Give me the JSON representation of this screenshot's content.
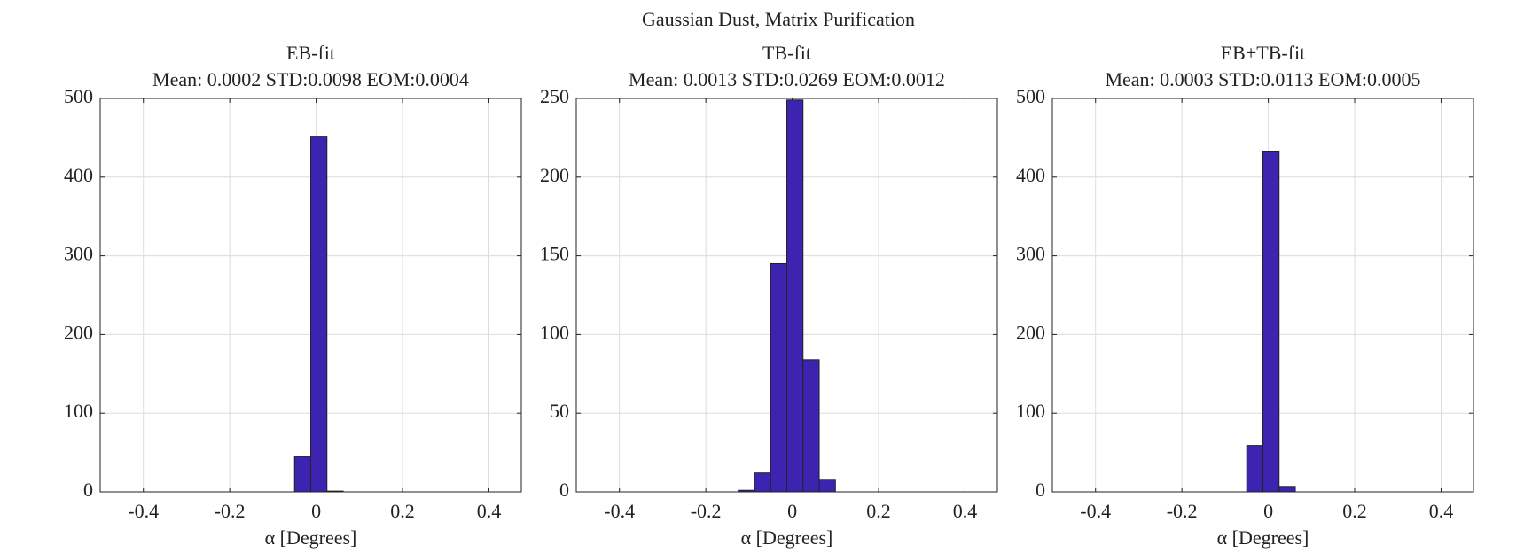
{
  "title": "Gaussian Dust, Matrix Purification",
  "chart_data": [
    {
      "type": "histogram",
      "title": "EB-fit",
      "subtitle": "Mean: 0.0002 STD:0.0098 EOM:0.0004",
      "bins": [
        -0.5,
        -0.4625,
        -0.425,
        -0.3875,
        -0.35,
        -0.3125,
        -0.275,
        -0.2375,
        -0.2,
        -0.1625,
        -0.125,
        -0.0875,
        -0.05,
        -0.0125,
        0.025,
        0.0625,
        0.1,
        0.1375,
        0.175,
        0.2125,
        0.25,
        0.2875,
        0.325,
        0.3625,
        0.4,
        0.4375,
        0.475
      ],
      "values": [
        0,
        0,
        0,
        0,
        0,
        0,
        0,
        0,
        0,
        0,
        0,
        0,
        45,
        452,
        1,
        0,
        0,
        0,
        0,
        0,
        0,
        0,
        0,
        0,
        0,
        0
      ],
      "color": "#3c24b0",
      "xlim": [
        -0.5,
        0.475
      ],
      "ylim": [
        0,
        500
      ],
      "xticks": [
        -0.4,
        -0.2,
        0,
        0.2,
        0.4
      ],
      "yticks": [
        0,
        100,
        200,
        300,
        400,
        500
      ],
      "xlabel": "α [Degrees]",
      "grid": true
    },
    {
      "type": "histogram",
      "title": "TB-fit",
      "subtitle": "Mean: 0.0013 STD:0.0269 EOM:0.0012",
      "bins": [
        -0.5,
        -0.4625,
        -0.425,
        -0.3875,
        -0.35,
        -0.3125,
        -0.275,
        -0.2375,
        -0.2,
        -0.1625,
        -0.125,
        -0.0875,
        -0.05,
        -0.0125,
        0.025,
        0.0625,
        0.1,
        0.1375,
        0.175,
        0.2125,
        0.25,
        0.2875,
        0.325,
        0.3625,
        0.4,
        0.4375,
        0.475
      ],
      "values": [
        0,
        0,
        0,
        0,
        0,
        0,
        0,
        0,
        0,
        0,
        1,
        12,
        145,
        249,
        84,
        8,
        0,
        0,
        0,
        0,
        0,
        0,
        0,
        0,
        0,
        0
      ],
      "color": "#3c24b0",
      "xlim": [
        -0.5,
        0.475
      ],
      "ylim": [
        0,
        250
      ],
      "xticks": [
        -0.4,
        -0.2,
        0,
        0.2,
        0.4
      ],
      "yticks": [
        0,
        50,
        100,
        150,
        200,
        250
      ],
      "xlabel": "α [Degrees]",
      "grid": true
    },
    {
      "type": "histogram",
      "title": "EB+TB-fit",
      "subtitle": "Mean: 0.0003 STD:0.0113 EOM:0.0005",
      "bins": [
        -0.5,
        -0.4625,
        -0.425,
        -0.3875,
        -0.35,
        -0.3125,
        -0.275,
        -0.2375,
        -0.2,
        -0.1625,
        -0.125,
        -0.0875,
        -0.05,
        -0.0125,
        0.025,
        0.0625,
        0.1,
        0.1375,
        0.175,
        0.2125,
        0.25,
        0.2875,
        0.325,
        0.3625,
        0.4,
        0.4375,
        0.475
      ],
      "values": [
        0,
        0,
        0,
        0,
        0,
        0,
        0,
        0,
        0,
        0,
        0,
        0,
        59,
        433,
        7,
        0,
        0,
        0,
        0,
        0,
        0,
        0,
        0,
        0,
        0,
        0
      ],
      "color": "#3c24b0",
      "xlim": [
        -0.5,
        0.475
      ],
      "ylim": [
        0,
        500
      ],
      "xticks": [
        -0.4,
        -0.2,
        0,
        0.2,
        0.4
      ],
      "yticks": [
        0,
        100,
        200,
        300,
        400,
        500
      ],
      "xlabel": "α [Degrees]",
      "grid": true
    }
  ]
}
